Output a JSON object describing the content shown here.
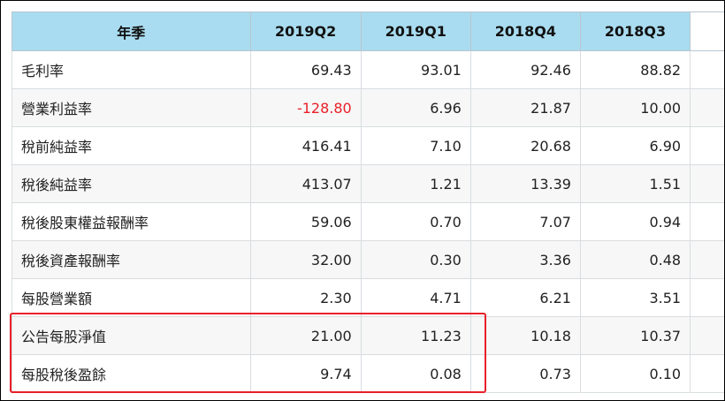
{
  "table": {
    "header": [
      "年季",
      "2019Q2",
      "2019Q1",
      "2018Q4",
      "2018Q3"
    ],
    "rows": [
      {
        "label": "毛利率",
        "values": [
          "69.43",
          "93.01",
          "92.46",
          "88.82"
        ]
      },
      {
        "label": "營業利益率",
        "values": [
          "-128.80",
          "6.96",
          "21.87",
          "10.00"
        ]
      },
      {
        "label": "稅前純益率",
        "values": [
          "416.41",
          "7.10",
          "20.68",
          "6.90"
        ]
      },
      {
        "label": "稅後純益率",
        "values": [
          "413.07",
          "1.21",
          "13.39",
          "1.51"
        ]
      },
      {
        "label": "稅後股東權益報酬率",
        "values": [
          "59.06",
          "0.70",
          "7.07",
          "0.94"
        ]
      },
      {
        "label": "稅後資產報酬率",
        "values": [
          "32.00",
          "0.30",
          "3.36",
          "0.48"
        ]
      },
      {
        "label": "每股營業額",
        "values": [
          "2.30",
          "4.71",
          "6.21",
          "3.51"
        ]
      },
      {
        "label": "公告每股淨值",
        "values": [
          "21.00",
          "11.23",
          "10.18",
          "10.37"
        ]
      },
      {
        "label": "每股稅後盈餘",
        "values": [
          "9.74",
          "0.08",
          "0.73",
          "0.10"
        ]
      }
    ]
  },
  "colors": {
    "header_bg": "#a9dcf0",
    "negative_value": "#e8202a",
    "highlight_box": "#e8202a"
  },
  "highlight": {
    "rows": [
      "公告每股淨值",
      "每股稅後盈餘"
    ],
    "columns": [
      "2019Q2",
      "2019Q1"
    ]
  }
}
